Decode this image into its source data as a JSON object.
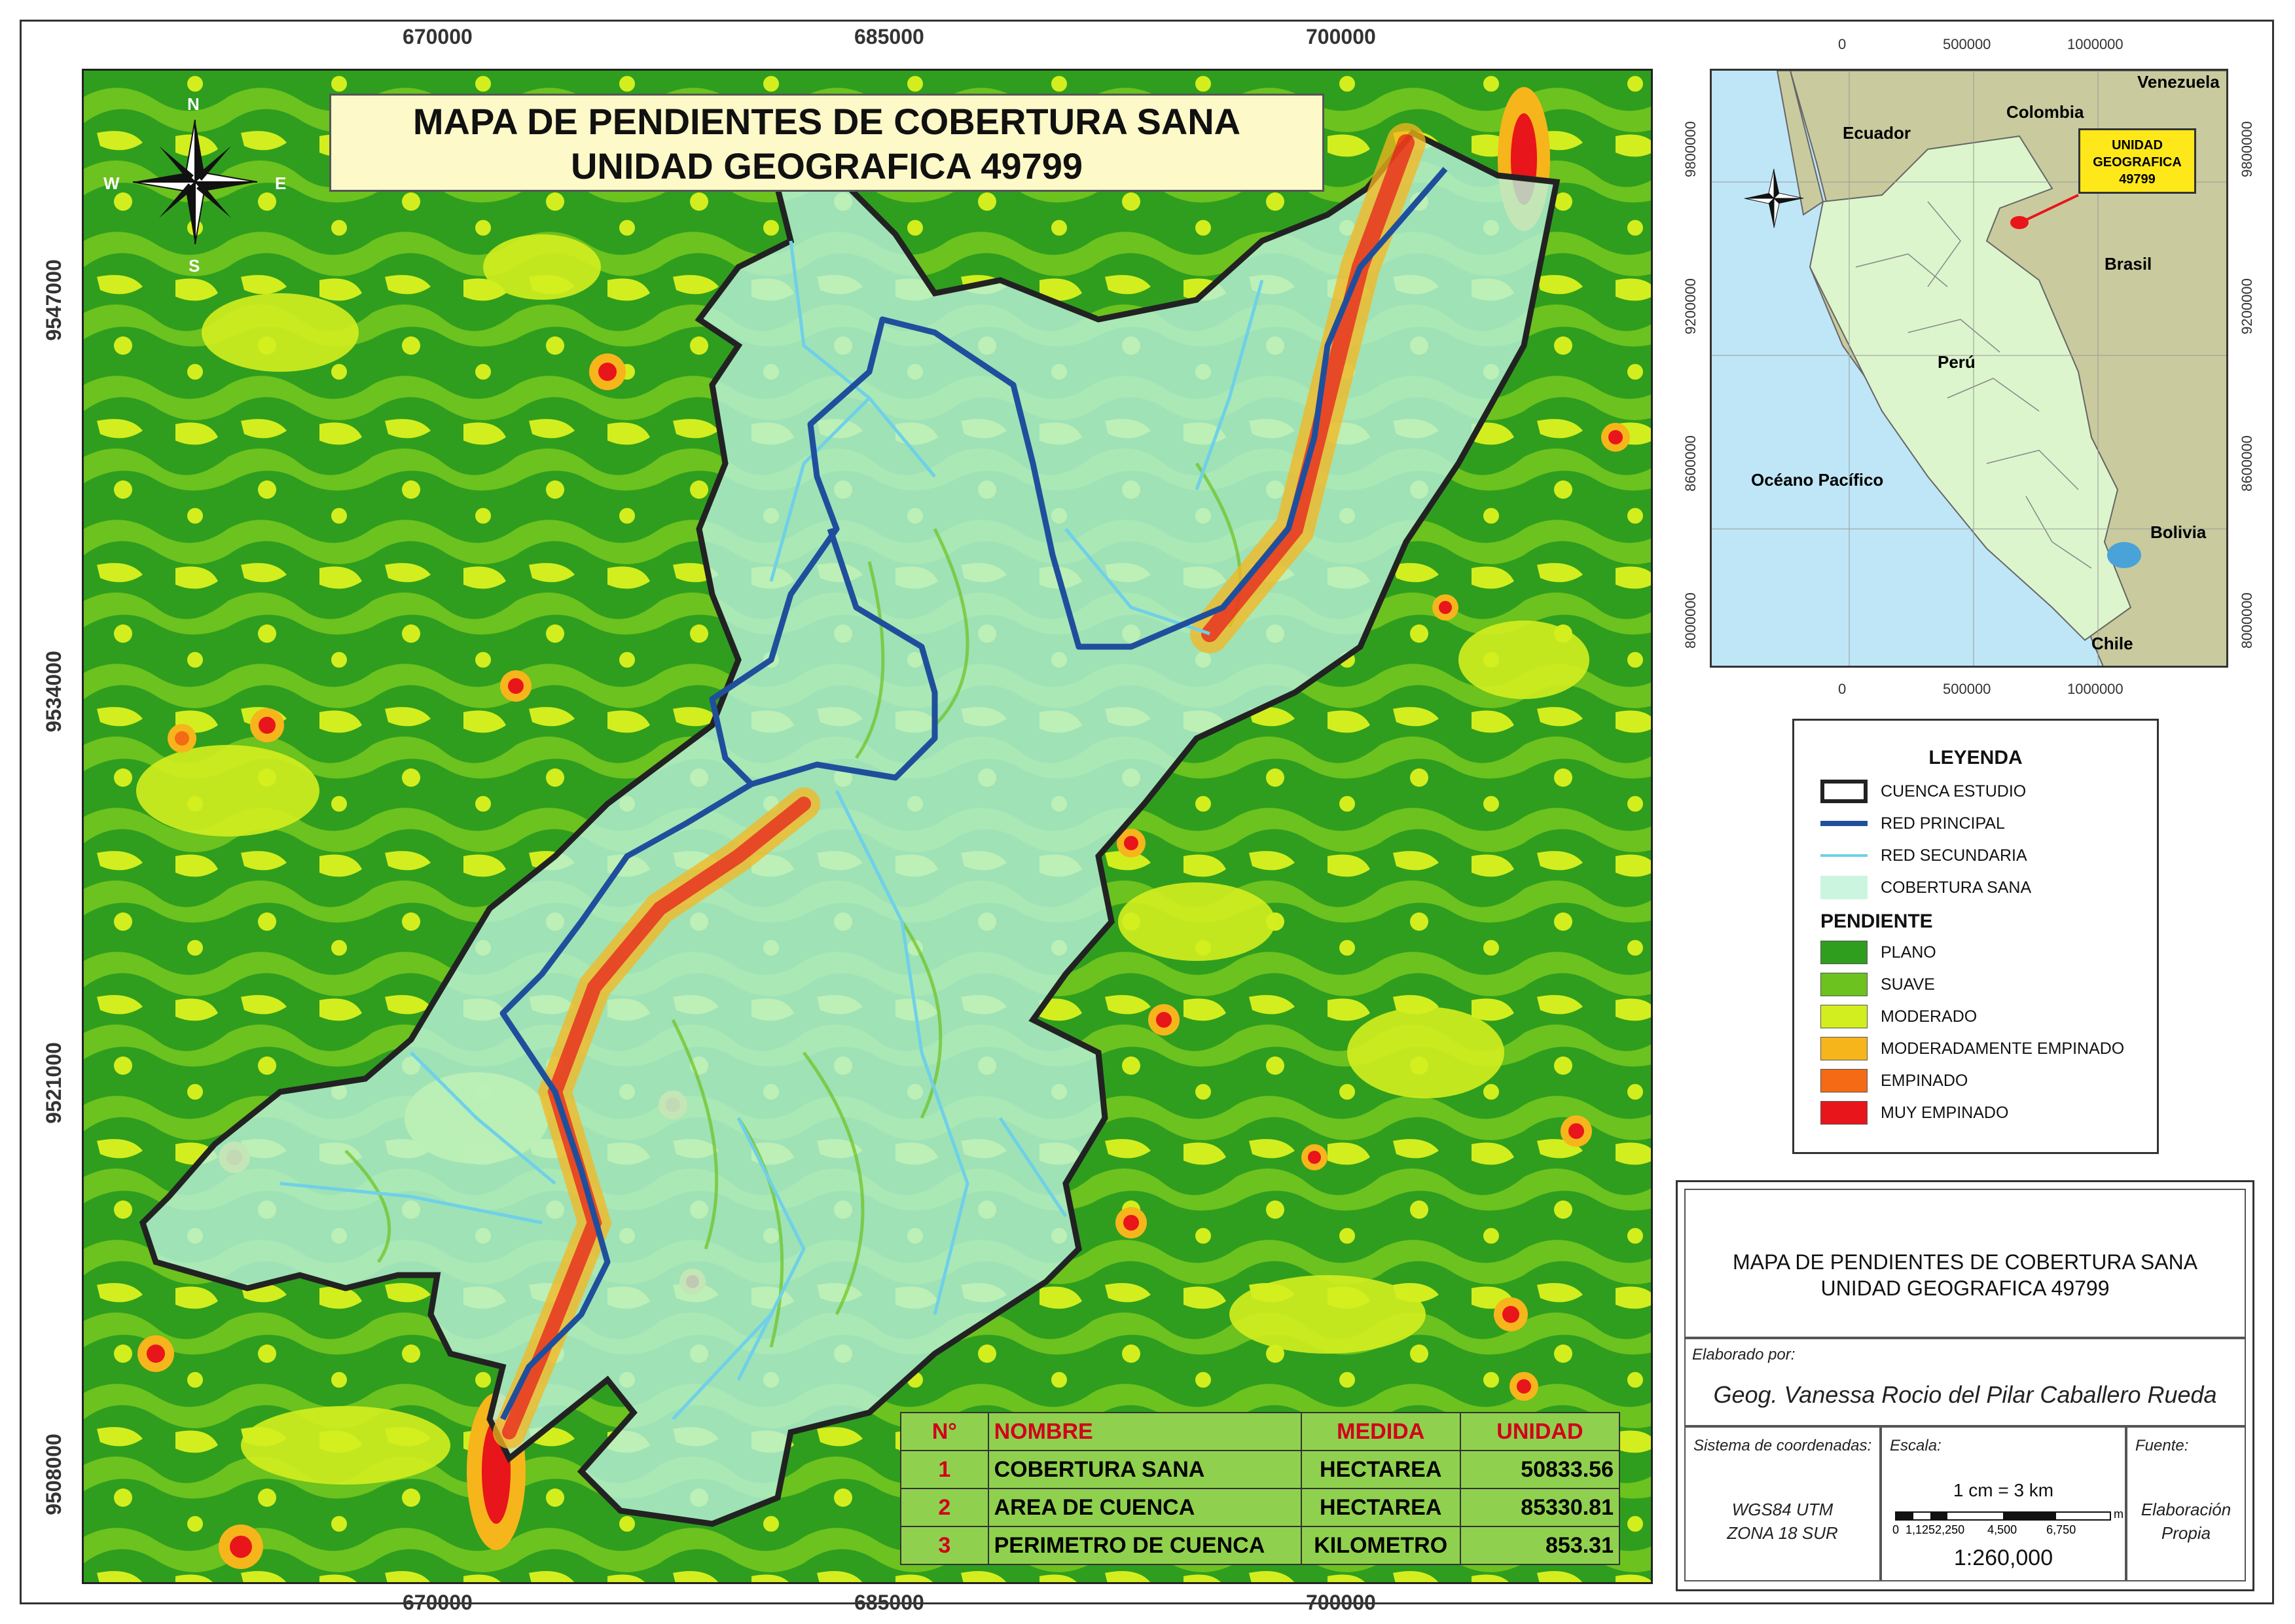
{
  "map_title": {
    "line1": "MAPA DE PENDIENTES DE COBERTURA SANA",
    "line2": "UNIDAD GEOGRAFICA 49799"
  },
  "grid": {
    "x_ticks": [
      "670000",
      "685000",
      "700000"
    ],
    "y_ticks": [
      "9547000",
      "9534000",
      "9521000",
      "9508000"
    ]
  },
  "north_arrow": {
    "n": "N",
    "s": "S",
    "e": "E",
    "w": "W"
  },
  "inset": {
    "x_ticks": [
      "0",
      "500000",
      "1000000"
    ],
    "y_ticks": [
      "9800000",
      "9200000",
      "8600000",
      "8000000"
    ],
    "labels": {
      "ecuador": "Ecuador",
      "colombia": "Colombia",
      "venezuela": "Venezuela",
      "brasil": "Brasil",
      "peru": "Perú",
      "oceano": "Océano Pacífico",
      "bolivia": "Bolivia",
      "chile": "Chile"
    },
    "callout": {
      "line1": "UNIDAD",
      "line2": "GEOGRAFICA",
      "line3": "49799"
    }
  },
  "legend": {
    "title": "LEYENDA",
    "items": [
      {
        "label": "CUENCA ESTUDIO"
      },
      {
        "label": "RED PRINCIPAL"
      },
      {
        "label": "RED SECUNDARIA"
      },
      {
        "label": "COBERTURA SANA"
      }
    ],
    "pendiente_title": "PENDIENTE",
    "pendiente": [
      {
        "label": "PLANO",
        "color": "#2f9e1f"
      },
      {
        "label": "SUAVE",
        "color": "#6cc21e"
      },
      {
        "label": "MODERADO",
        "color": "#d3ee1e"
      },
      {
        "label": "MODERADAMENTE EMPINADO",
        "color": "#f7b51c"
      },
      {
        "label": "EMPINADO",
        "color": "#f56a14"
      },
      {
        "label": "MUY EMPINADO",
        "color": "#e8151a"
      }
    ]
  },
  "table": {
    "headers": [
      "N°",
      "NOMBRE",
      "MEDIDA",
      "UNIDAD"
    ],
    "rows": [
      [
        "1",
        "COBERTURA SANA",
        "HECTAREA",
        "50833.56"
      ],
      [
        "2",
        "AREA DE CUENCA",
        "HECTAREA",
        "85330.81"
      ],
      [
        "3",
        "PERIMETRO DE CUENCA",
        "KILOMETRO",
        "853.31"
      ]
    ]
  },
  "info": {
    "title_line1": "MAPA DE PENDIENTES DE COBERTURA SANA",
    "title_line2": "UNIDAD GEOGRAFICA 49799",
    "elaborado_label": "Elaborado por:",
    "author": "Geog. Vanessa Rocio del Pilar Caballero Rueda",
    "sistema_label": "Sistema de coordenadas:",
    "sistema_line1": "WGS84 UTM",
    "sistema_line2": "ZONA 18 SUR",
    "escala_label": "Escala:",
    "escala_text": "1 cm = 3 km",
    "scalebar_ticks": "0  1,1252,250       4,500         6,750",
    "scalebar_unit": "m",
    "escala_ratio": "1:260,000",
    "fuente_label": "Fuente:",
    "fuente_line1": "Elaboración",
    "fuente_line2": "Propia"
  },
  "colors": {
    "plano": "#2f9e1f",
    "suave": "#6cc21e",
    "moderado": "#d3ee1e",
    "mod_empinado": "#f7b51c",
    "empinado": "#f56a14",
    "muy_empinado": "#e8151a",
    "cobertura": "#b8f0d8",
    "red_principal": "#1f4f9c",
    "red_secundaria": "#6fd0e8",
    "table_bg": "#8fd14f",
    "table_header_text": "#d0021b",
    "water": "#bfe6f7",
    "land_other": "#c9cb9e",
    "peru": "#dcf5cd"
  }
}
